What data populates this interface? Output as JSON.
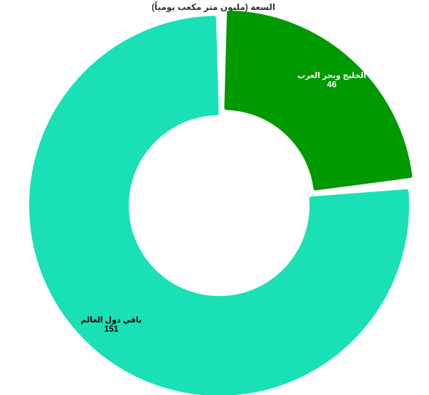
{
  "chart_data": {
    "type": "pie",
    "title": "السعة (مليون متر مكعب يومياً)",
    "donut": true,
    "slices": [
      {
        "label": "الخليج وبحر العرب",
        "value": 46,
        "color": "#009900",
        "label_color": "#ffffff"
      },
      {
        "label": "باقي دول العالم",
        "value": 151,
        "color": "#1ae0b5",
        "label_color": "#000000"
      }
    ]
  }
}
